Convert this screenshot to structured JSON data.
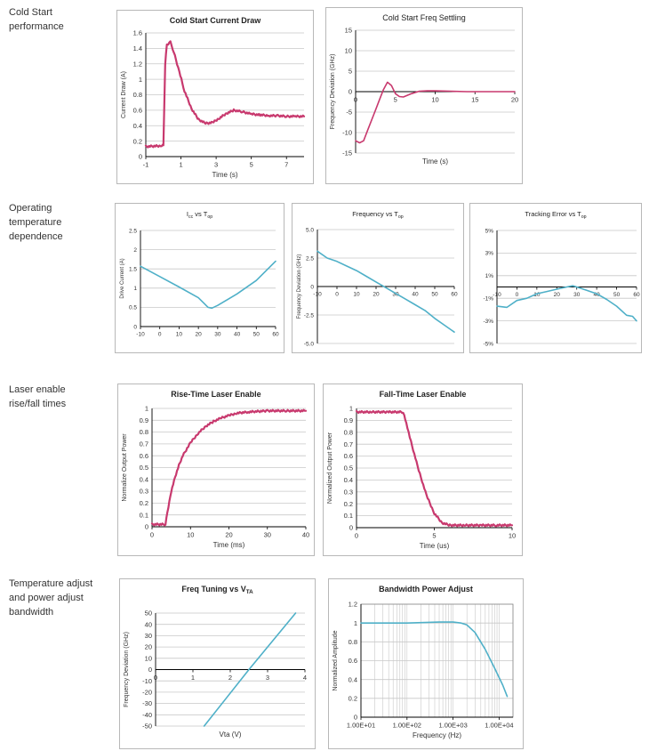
{
  "sections": [
    {
      "label": "Cold Start\nperformance"
    },
    {
      "label": "Operating\ntemperature\ndependence"
    },
    {
      "label": "Laser enable\nrise/fall times"
    },
    {
      "label": "Temperature adjust\nand power adjust\nbandwidth"
    }
  ],
  "colors": {
    "pink": "#c8396e",
    "blue": "#4fb0c8",
    "grid": "#c8c8c8",
    "axis": "#000000"
  },
  "chart_data": [
    {
      "id": "c1",
      "type": "line",
      "title": "Cold Start Current Draw",
      "xlabel": "Time (s)",
      "ylabel": "Current Draw (A)",
      "xlim": [
        -1,
        8
      ],
      "ylim": [
        0,
        1.6
      ],
      "xticks": [
        -1,
        1,
        3,
        5,
        7
      ],
      "xtick_labels": [
        "-1",
        "1",
        "3",
        "5",
        "7"
      ],
      "yticks": [
        0,
        0.2,
        0.4,
        0.6,
        0.8,
        1,
        1.2,
        1.4,
        1.6
      ],
      "ytick_labels": [
        "0",
        "0.2",
        "0.4",
        "0.6",
        "0.8",
        "1",
        "1.2",
        "1.4",
        "1.6"
      ],
      "grid": "horizontal",
      "color": "pink",
      "noisy": true,
      "series": [
        {
          "x": [
            -1,
            -0.1,
            0,
            0.1,
            0.2,
            0.4,
            0.6,
            0.9,
            1.2,
            1.6,
            2.0,
            2.4,
            2.8,
            3.2,
            3.6,
            4.0,
            4.5,
            5.0,
            5.5,
            6.0,
            6.5,
            7.0,
            7.5,
            8.0
          ],
          "y": [
            0.13,
            0.14,
            0.14,
            1.2,
            1.45,
            1.48,
            1.35,
            1.1,
            0.85,
            0.62,
            0.48,
            0.43,
            0.44,
            0.5,
            0.56,
            0.6,
            0.58,
            0.55,
            0.54,
            0.53,
            0.53,
            0.52,
            0.52,
            0.52
          ]
        }
      ]
    },
    {
      "id": "c2",
      "type": "line",
      "title": "Cold Start Freq Settling",
      "xlabel": "Time (s)",
      "ylabel": "Frequency Deviation (GHz)",
      "xlim": [
        0,
        20
      ],
      "ylim": [
        -15,
        15
      ],
      "xticks": [
        0,
        5,
        10,
        15,
        20
      ],
      "xtick_labels": [
        "0",
        "5",
        "10",
        "15",
        "20"
      ],
      "yticks": [
        -15,
        -10,
        -5,
        0,
        5,
        10,
        15
      ],
      "ytick_labels": [
        "-15",
        "-10",
        "-5",
        "0",
        "5",
        "10",
        "15"
      ],
      "x_axis_at": 0,
      "grid": "horizontal",
      "color": "pink",
      "noisy": false,
      "series": [
        {
          "x": [
            0,
            0.5,
            1,
            1.5,
            2,
            2.5,
            3,
            3.5,
            4,
            4.5,
            5,
            5.5,
            6,
            7,
            8,
            9,
            10,
            12,
            14,
            16,
            18,
            20
          ],
          "y": [
            -12,
            -12.5,
            -12,
            -9.5,
            -7,
            -4.5,
            -2,
            0.5,
            2.3,
            1.5,
            -0.5,
            -1.2,
            -1.3,
            -0.5,
            0.1,
            0.2,
            0.2,
            0.1,
            0.0,
            0.0,
            0.0,
            0.0
          ]
        }
      ]
    },
    {
      "id": "c3",
      "type": "line",
      "title": "Icc vs Top",
      "title_parts": {
        "main": "I",
        "sub1": "cc",
        "mid": " vs T",
        "sub2": "op"
      },
      "xlabel": "",
      "ylabel": "Drive Current (A)",
      "xlim": [
        -10,
        60
      ],
      "ylim": [
        0,
        2.5
      ],
      "xticks": [
        -10,
        0,
        10,
        20,
        30,
        40,
        50,
        60
      ],
      "xtick_labels": [
        "-10",
        "0",
        "10",
        "20",
        "30",
        "40",
        "50",
        "60"
      ],
      "yticks": [
        0,
        0.5,
        1,
        1.5,
        2,
        2.5
      ],
      "ytick_labels": [
        "0",
        "0.5",
        "1",
        "1.5",
        "2",
        "2.5"
      ],
      "grid": "horizontal",
      "color": "blue",
      "noisy": false,
      "series": [
        {
          "x": [
            -10,
            0,
            10,
            20,
            23,
            25,
            27,
            30,
            40,
            50,
            60
          ],
          "y": [
            1.57,
            1.3,
            1.03,
            0.75,
            0.6,
            0.5,
            0.48,
            0.55,
            0.85,
            1.2,
            1.7
          ]
        }
      ]
    },
    {
      "id": "c4",
      "type": "line",
      "title": "Frequency vs Top",
      "title_parts": {
        "main": "Frequency vs T",
        "sub1": "",
        "mid": "",
        "sub2": "op"
      },
      "xlabel": "",
      "ylabel": "Frequency Deviation (GHz)",
      "xlim": [
        -10,
        60
      ],
      "ylim": [
        -5,
        5
      ],
      "xticks": [
        -10,
        0,
        10,
        20,
        30,
        40,
        50,
        60
      ],
      "xtick_labels": [
        "-10",
        "0",
        "10",
        "20",
        "30",
        "40",
        "50",
        "60"
      ],
      "yticks": [
        -5,
        -2.5,
        0,
        2.5,
        5
      ],
      "ytick_labels": [
        "-5.0",
        "-2.5",
        "0",
        "2.5",
        "5.0"
      ],
      "x_axis_at": 0,
      "grid": "horizontal",
      "color": "blue",
      "noisy": false,
      "series": [
        {
          "x": [
            -10,
            -5,
            0,
            5,
            10,
            15,
            20,
            25,
            30,
            35,
            40,
            45,
            50,
            55,
            60
          ],
          "y": [
            3.1,
            2.5,
            2.2,
            1.8,
            1.4,
            0.9,
            0.4,
            -0.1,
            -0.6,
            -1.1,
            -1.6,
            -2.1,
            -2.8,
            -3.4,
            -4.0
          ]
        }
      ]
    },
    {
      "id": "c5",
      "type": "line",
      "title": "Tracking Error vs Top",
      "title_parts": {
        "main": "Tracking Error vs T",
        "sub1": "",
        "mid": "",
        "sub2": "op"
      },
      "xlabel": "",
      "ylabel": "",
      "xlim": [
        -10,
        60
      ],
      "ylim": [
        -5,
        5
      ],
      "xticks": [
        -10,
        0,
        10,
        20,
        30,
        40,
        50,
        60
      ],
      "xtick_labels": [
        "-10",
        "0",
        "10",
        "20",
        "30",
        "40",
        "50",
        "60"
      ],
      "yticks": [
        -5,
        -3,
        -1,
        1,
        3,
        5
      ],
      "ytick_labels": [
        "-5%",
        "-3%",
        "-1%",
        "1%",
        "3%",
        "5%"
      ],
      "x_axis_at": 0,
      "grid": "horizontal",
      "color": "blue",
      "noisy": false,
      "series": [
        {
          "x": [
            -10,
            -5,
            0,
            5,
            10,
            15,
            20,
            25,
            28,
            30,
            35,
            40,
            45,
            50,
            55,
            58,
            60
          ],
          "y": [
            -1.7,
            -1.8,
            -1.2,
            -1.0,
            -0.6,
            -0.4,
            -0.2,
            0.0,
            0.1,
            0.0,
            -0.3,
            -0.6,
            -1.1,
            -1.7,
            -2.5,
            -2.6,
            -3.0
          ]
        }
      ]
    },
    {
      "id": "c6",
      "type": "line",
      "title": "Rise-Time Laser Enable",
      "xlabel": "Time (ms)",
      "ylabel": "Normalize Output Power",
      "xlim": [
        0,
        40
      ],
      "ylim": [
        0,
        1
      ],
      "xticks": [
        0,
        10,
        20,
        30,
        40
      ],
      "xtick_labels": [
        "0",
        "10",
        "20",
        "30",
        "40"
      ],
      "yticks": [
        0,
        0.1,
        0.2,
        0.3,
        0.4,
        0.5,
        0.6,
        0.7,
        0.8,
        0.9,
        1
      ],
      "ytick_labels": [
        "0",
        "0.1",
        "0.2",
        "0.3",
        "0.4",
        "0.5",
        "0.6",
        "0.7",
        "0.8",
        "0.9",
        "1"
      ],
      "grid": "horizontal",
      "color": "pink",
      "noisy": true,
      "series": [
        {
          "x": [
            0,
            3.5,
            4,
            5,
            6,
            7,
            8,
            10,
            12,
            14,
            16,
            18,
            20,
            22,
            25,
            30,
            35,
            40
          ],
          "y": [
            0.02,
            0.02,
            0.12,
            0.3,
            0.42,
            0.52,
            0.6,
            0.71,
            0.79,
            0.85,
            0.89,
            0.92,
            0.94,
            0.96,
            0.97,
            0.98,
            0.98,
            0.98
          ]
        }
      ]
    },
    {
      "id": "c7",
      "type": "line",
      "title": "Fall-Time Laser Enable",
      "xlabel": "Time (us)",
      "ylabel": "Normalized Output Power",
      "xlim": [
        0,
        10
      ],
      "ylim": [
        0,
        1
      ],
      "xticks": [
        0,
        5,
        10
      ],
      "xtick_labels": [
        "0",
        "5",
        "10"
      ],
      "yticks": [
        0,
        0.1,
        0.2,
        0.3,
        0.4,
        0.5,
        0.6,
        0.7,
        0.8,
        0.9,
        1
      ],
      "ytick_labels": [
        "0",
        "0.1",
        "0.2",
        "0.3",
        "0.4",
        "0.5",
        "0.6",
        "0.7",
        "0.8",
        "0.9",
        "1"
      ],
      "grid": "horizontal",
      "color": "pink",
      "noisy": true,
      "series": [
        {
          "x": [
            0,
            1,
            2,
            3,
            3.2,
            3.5,
            4,
            4.5,
            5,
            5.5,
            6,
            7,
            8,
            9,
            10
          ],
          "y": [
            0.97,
            0.97,
            0.97,
            0.97,
            0.88,
            0.72,
            0.48,
            0.27,
            0.12,
            0.04,
            0.02,
            0.02,
            0.02,
            0.02,
            0.02
          ]
        }
      ]
    },
    {
      "id": "c8",
      "type": "line",
      "title": "Freq Tuning vs VTA",
      "title_parts": {
        "main": "Freq Tuning vs V",
        "sub1": "",
        "mid": "",
        "sub2": "TA"
      },
      "xlabel": "Vta (V)",
      "ylabel": "Frequency Deviation (GHz)",
      "xlim": [
        0,
        4
      ],
      "ylim": [
        -50,
        50
      ],
      "xticks": [
        0,
        1,
        2,
        3,
        4
      ],
      "xtick_labels": [
        "0",
        "1",
        "2",
        "3",
        "4"
      ],
      "yticks": [
        -50,
        -40,
        -30,
        -20,
        -10,
        0,
        10,
        20,
        30,
        40,
        50
      ],
      "ytick_labels": [
        "-50",
        "-40",
        "-30",
        "-20",
        "-10",
        "0",
        "10",
        "20",
        "30",
        "40",
        "50"
      ],
      "x_axis_at": 0,
      "grid": "horizontal",
      "color": "blue",
      "noisy": false,
      "series": [
        {
          "x": [
            1.3,
            2.5,
            3.75
          ],
          "y": [
            -50,
            0,
            50
          ]
        }
      ]
    },
    {
      "id": "c9",
      "type": "line",
      "title": "Bandwidth Power Adjust",
      "xlabel": "Frequency (Hz)",
      "ylabel": "Normalized Amplitude",
      "xscale": "log",
      "xlim": [
        10,
        20000
      ],
      "ylim": [
        0,
        1.2
      ],
      "xticks": [
        10,
        100,
        1000,
        10000
      ],
      "xtick_labels": [
        "1.00E+01",
        "1.00E+02",
        "1.00E+03",
        "1.00E+04"
      ],
      "yticks": [
        0,
        0.2,
        0.4,
        0.6,
        0.8,
        1,
        1.2
      ],
      "ytick_labels": [
        "0",
        "0.2",
        "0.4",
        "0.6",
        "0.8",
        "1",
        "1.2"
      ],
      "grid": "both",
      "color": "blue",
      "noisy": false,
      "series": [
        {
          "x": [
            10,
            100,
            500,
            1000,
            1500,
            2000,
            3000,
            5000,
            8000,
            12000,
            15000
          ],
          "y": [
            1.0,
            1.0,
            1.01,
            1.01,
            1.0,
            0.98,
            0.9,
            0.72,
            0.52,
            0.34,
            0.22
          ]
        }
      ]
    }
  ]
}
